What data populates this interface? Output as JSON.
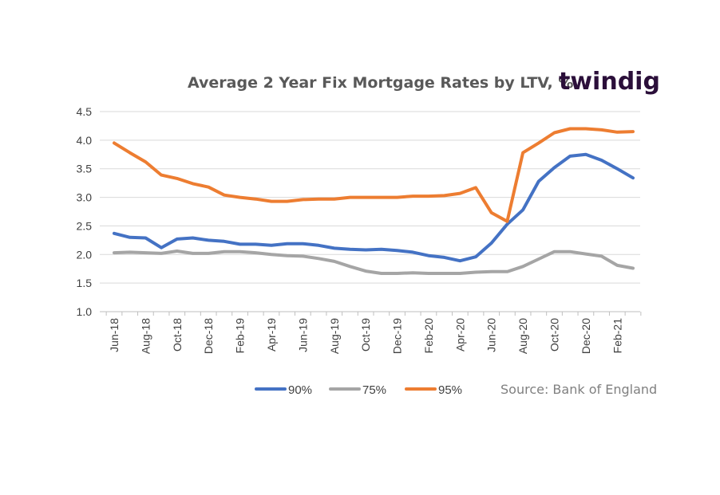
{
  "header": {
    "title": "Average 2 Year Fix Mortgage Rates by LTV, %",
    "logo_text": "twindig"
  },
  "source_text": "Source: Bank of England",
  "chart_data": {
    "type": "line",
    "title": "Average 2 Year Fix Mortgage Rates by LTV, %",
    "xlabel": "",
    "ylabel": "",
    "ylim": [
      1.0,
      4.5
    ],
    "yticks": [
      "1.0",
      "1.5",
      "2.0",
      "2.5",
      "3.0",
      "3.5",
      "4.0",
      "4.5"
    ],
    "categories": [
      "Jun-18",
      "Jul-18",
      "Aug-18",
      "Sep-18",
      "Oct-18",
      "Nov-18",
      "Dec-18",
      "Jan-19",
      "Feb-19",
      "Mar-19",
      "Apr-19",
      "May-19",
      "Jun-19",
      "Jul-19",
      "Aug-19",
      "Sep-19",
      "Oct-19",
      "Nov-19",
      "Dec-19",
      "Jan-20",
      "Feb-20",
      "Mar-20",
      "Apr-20",
      "May-20",
      "Jun-20",
      "Jul-20",
      "Aug-20",
      "Sep-20",
      "Oct-20",
      "Nov-20",
      "Dec-20",
      "Jan-21",
      "Feb-21",
      "Mar-21"
    ],
    "x_tick_labels": [
      "Jun-18",
      "Aug-18",
      "Oct-18",
      "Dec-18",
      "Feb-19",
      "Apr-19",
      "Jun-19",
      "Aug-19",
      "Oct-19",
      "Dec-19",
      "Feb-20",
      "Apr-20",
      "Jun-20",
      "Aug-20",
      "Oct-20",
      "Dec-20",
      "Feb-21"
    ],
    "grid": "horizontal",
    "legend_position": "bottom",
    "series": [
      {
        "name": "90%",
        "color": "#4472c4",
        "values": [
          2.37,
          2.3,
          2.29,
          2.12,
          2.27,
          2.29,
          2.25,
          2.23,
          2.18,
          2.18,
          2.16,
          2.19,
          2.19,
          2.16,
          2.11,
          2.09,
          2.08,
          2.09,
          2.07,
          2.04,
          1.98,
          1.95,
          1.89,
          1.96,
          2.2,
          2.53,
          2.78,
          3.28,
          3.52,
          3.72,
          3.75,
          3.65,
          3.5,
          3.34
        ]
      },
      {
        "name": "75%",
        "color": "#a5a5a5",
        "values": [
          2.03,
          2.04,
          2.03,
          2.02,
          2.06,
          2.02,
          2.02,
          2.05,
          2.05,
          2.03,
          2.0,
          1.98,
          1.97,
          1.93,
          1.88,
          1.79,
          1.71,
          1.67,
          1.67,
          1.68,
          1.67,
          1.67,
          1.67,
          1.69,
          1.7,
          1.7,
          1.79,
          1.92,
          2.05,
          2.05,
          2.01,
          1.97,
          1.81,
          1.76
        ]
      },
      {
        "name": "95%",
        "color": "#ed7d31",
        "values": [
          3.95,
          3.78,
          3.62,
          3.39,
          3.33,
          3.24,
          3.18,
          3.04,
          3.0,
          2.97,
          2.93,
          2.93,
          2.96,
          2.97,
          2.97,
          3.0,
          3.0,
          3.0,
          3.0,
          3.02,
          3.02,
          3.03,
          3.07,
          3.17,
          2.73,
          2.58,
          3.78,
          3.95,
          4.13,
          4.2,
          4.2,
          4.18,
          4.14,
          4.15
        ]
      }
    ]
  }
}
